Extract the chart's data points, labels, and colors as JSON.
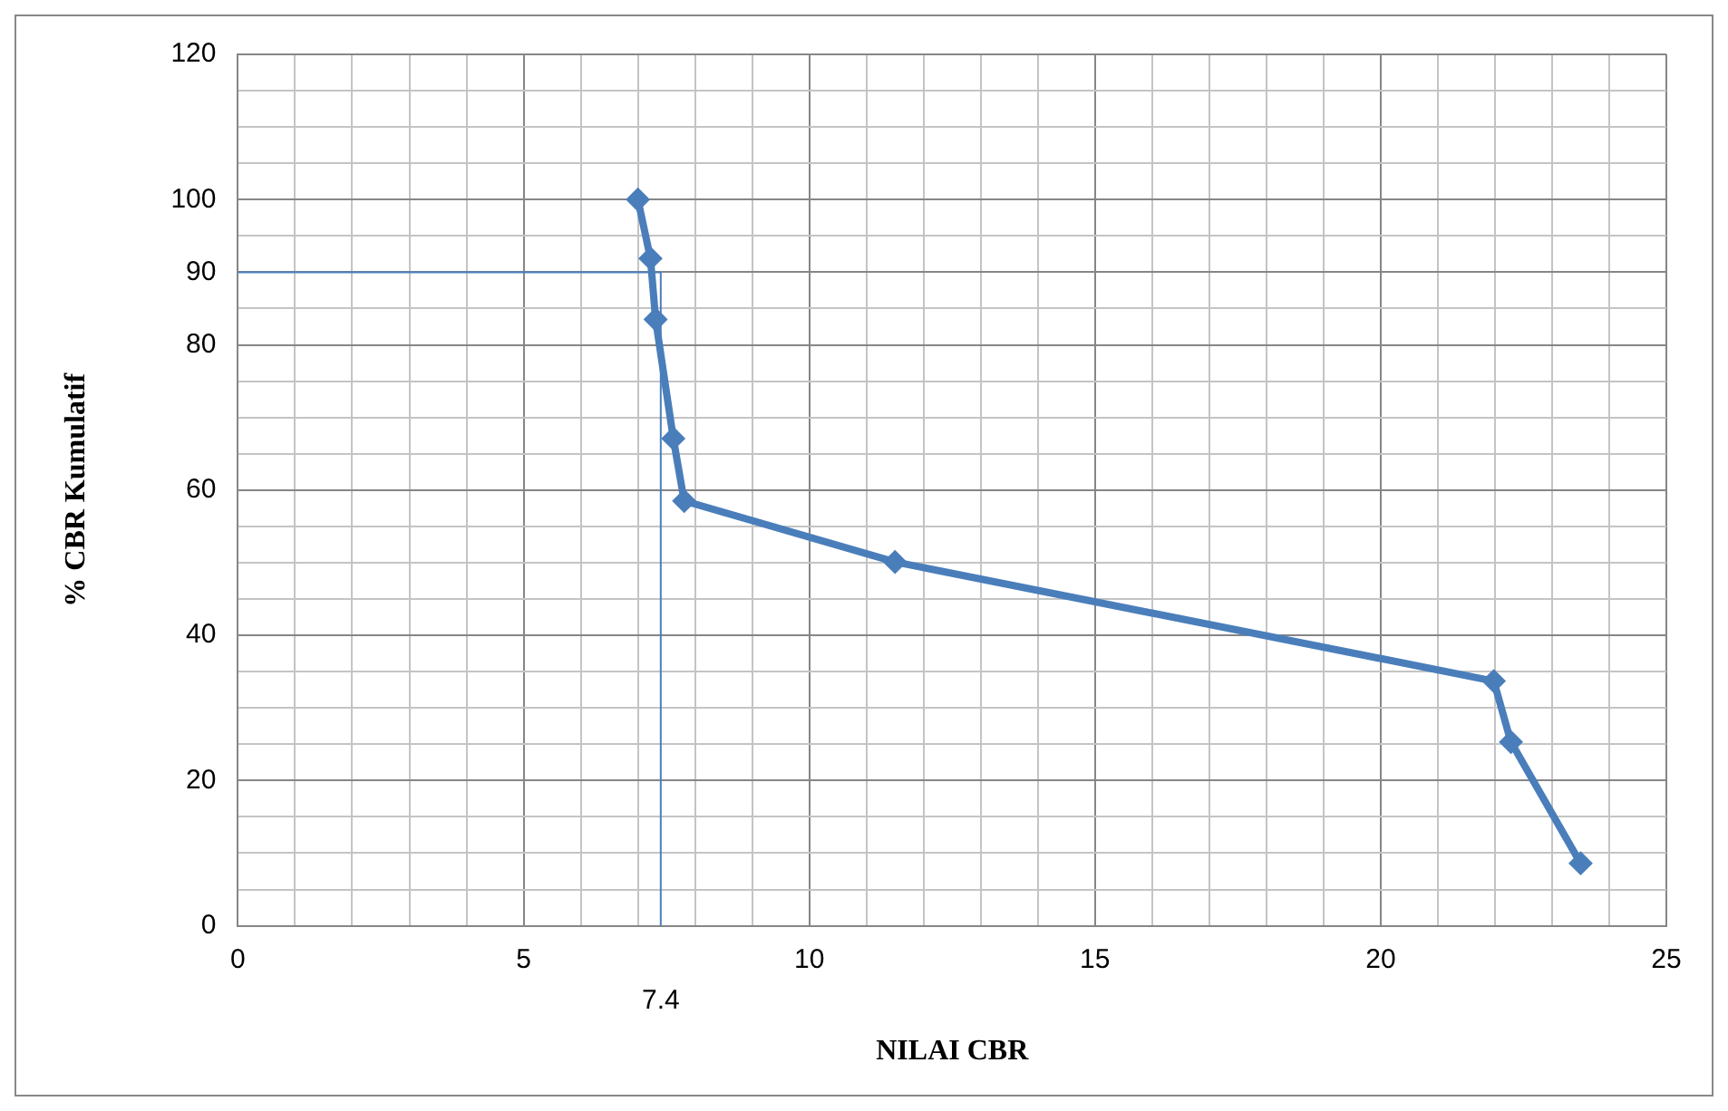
{
  "chart_data": {
    "type": "line",
    "xlabel": "NILAI CBR",
    "ylabel": "% CBR Kumulatif",
    "series": [
      {
        "color": "#4a7ebb",
        "x": [
          7.0,
          7.22,
          7.31,
          7.62,
          7.81,
          11.5,
          21.98,
          22.28,
          23.5
        ],
        "values": [
          100,
          91.9,
          83.5,
          67.1,
          58.5,
          50.1,
          33.7,
          25.3,
          8.6
        ]
      }
    ],
    "xlim": [
      0,
      25
    ],
    "ylim": [
      0,
      120
    ],
    "xticks": [
      0,
      {
        "value": 1,
        "label": null
      },
      {
        "value": 2,
        "label": null
      },
      {
        "value": 3,
        "label": null
      },
      {
        "value": 4,
        "label": null
      },
      5,
      {
        "value": 6,
        "label": null
      },
      {
        "value": 7,
        "label": null
      },
      {
        "value": 8,
        "label": null
      },
      {
        "value": 9,
        "label": null
      },
      10,
      {
        "value": 11,
        "label": null
      },
      {
        "value": 12,
        "label": null
      },
      {
        "value": 13,
        "label": null
      },
      {
        "value": 14,
        "label": null
      },
      15,
      {
        "value": 16,
        "label": null
      },
      {
        "value": 17,
        "label": null
      },
      {
        "value": 18,
        "label": null
      },
      {
        "value": 19,
        "label": null
      },
      20,
      {
        "value": 21,
        "label": null
      },
      {
        "value": 22,
        "label": null
      },
      {
        "value": 23,
        "label": null
      },
      {
        "value": 24,
        "label": null
      },
      25
    ],
    "yticks": [
      0,
      {
        "value": 5,
        "label": null
      },
      {
        "value": 10,
        "label": null
      },
      {
        "value": 15,
        "label": null
      },
      20,
      {
        "value": 25,
        "label": null
      },
      {
        "value": 30,
        "label": null
      },
      {
        "value": 35,
        "label": null
      },
      40,
      {
        "value": 45,
        "label": null
      },
      {
        "value": 50,
        "label": null
      },
      {
        "value": 55,
        "label": null
      },
      60,
      {
        "value": 65,
        "label": null
      },
      {
        "value": 70,
        "label": null
      },
      {
        "value": 75,
        "label": null
      },
      80,
      {
        "value": 85,
        "label": null
      },
      90,
      {
        "value": 95,
        "label": null
      },
      100,
      {
        "value": 105,
        "label": null
      },
      {
        "value": 110,
        "label": null
      },
      {
        "value": 115,
        "label": null
      },
      120
    ],
    "ref_lines": [
      {
        "axis": "x",
        "value": 7.4,
        "label": "7.4",
        "color": "#4a7ebb"
      },
      {
        "axis": "y",
        "value": 90,
        "color": "#4a7ebb"
      }
    ],
    "grid": true,
    "legend": false,
    "marker": "diamond",
    "line_style": "solid"
  }
}
